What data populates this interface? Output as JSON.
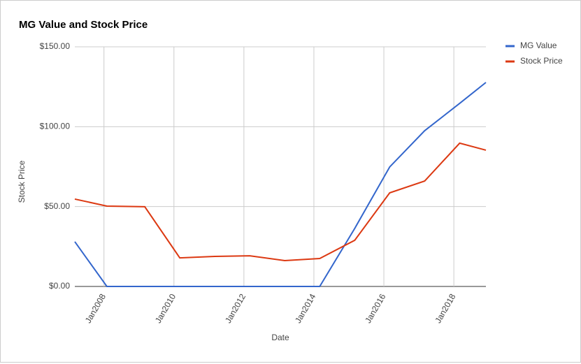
{
  "chart_data": {
    "type": "line",
    "title": "MG Value and Stock Price",
    "x_label": "Date",
    "y_label": "Stock Price",
    "x": [
      "2007-03",
      "2008-02",
      "2009-03",
      "2010-03",
      "2011-03",
      "2012-03",
      "2013-03",
      "2014-03",
      "2015-03",
      "2016-03",
      "2017-03",
      "2018-03",
      "2018-12"
    ],
    "series": [
      {
        "name": "MG Value",
        "color": "#3366cc",
        "values": [
          28.0,
          0,
          0,
          0,
          0,
          0,
          0,
          0,
          36.3,
          74.8,
          97.5,
          114.6,
          127.7
        ]
      },
      {
        "name": "Stock Price",
        "color": "#dc3912",
        "values": [
          54.7,
          50.3,
          49.9,
          17.9,
          18.8,
          19.2,
          16.2,
          17.5,
          28.9,
          58.6,
          66.0,
          89.7,
          85.3
        ]
      }
    ],
    "xlim": [
      "2007-03",
      "2018-12"
    ],
    "xticks": [
      {
        "value": "2008-01",
        "label": "Jan2008"
      },
      {
        "value": "2010-01",
        "label": "Jan2010"
      },
      {
        "value": "2012-01",
        "label": "Jan2012"
      },
      {
        "value": "2014-01",
        "label": "Jan2014"
      },
      {
        "value": "2016-01",
        "label": "Jan2016"
      },
      {
        "value": "2018-01",
        "label": "Jan2018"
      }
    ],
    "ylim": [
      0,
      150
    ],
    "yticks": [
      {
        "value": 0,
        "label": "$0.00"
      },
      {
        "value": 50,
        "label": "$50.00"
      },
      {
        "value": 100,
        "label": "$100.00"
      },
      {
        "value": 150,
        "label": "$150.00"
      }
    ],
    "grid": true,
    "legend": "right"
  }
}
